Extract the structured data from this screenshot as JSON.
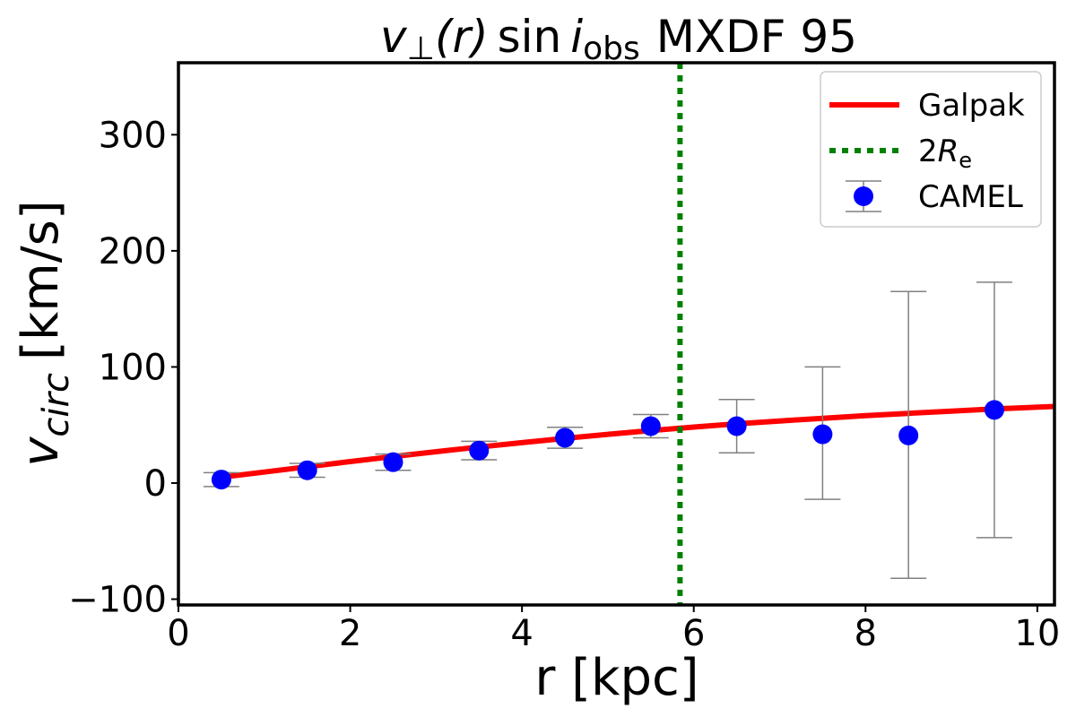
{
  "chart_data": {
    "type": "scatter",
    "title": {
      "v": "v",
      "perp": "⊥",
      "r_expr": "(r)",
      "sin": "sin",
      "i": "i",
      "obs": "obs",
      "name": "MXDF 95"
    },
    "xlabel": "r [kpc]",
    "ylabel": {
      "v": "v",
      "sub": "circ",
      "unit": "[km/s]"
    },
    "xlim": [
      0,
      10.2
    ],
    "ylim": [
      -105,
      362
    ],
    "xticks": [
      0,
      2,
      4,
      6,
      8,
      10
    ],
    "yticks": [
      -100,
      0,
      100,
      200,
      300
    ],
    "xtick_labels": [
      "0",
      "2",
      "4",
      "6",
      "8",
      "10"
    ],
    "ytick_labels": [
      "−100",
      "0",
      "100",
      "200",
      "300"
    ],
    "grid": false,
    "legend_position": "top-right",
    "series": [
      {
        "name": "Galpak",
        "kind": "line",
        "color": "#ff0000",
        "x": [
          0.5,
          1,
          1.5,
          2,
          2.5,
          3,
          3.5,
          4,
          4.5,
          5,
          5.5,
          6,
          6.5,
          7,
          7.5,
          8,
          8.5,
          9,
          9.5,
          10.2
        ],
        "y": [
          5,
          9.5,
          14,
          18.5,
          22.8,
          27,
          31,
          34.8,
          38.5,
          42,
          45.2,
          48.2,
          51,
          53.5,
          55.8,
          58,
          60,
          62,
          63.8,
          66
        ]
      },
      {
        "name": "2R_e",
        "kind": "vline",
        "color": "#008000",
        "x": 5.84
      },
      {
        "name": "CAMEL",
        "kind": "errorbar",
        "color": "#0000ff",
        "ecolor": "#808080",
        "x": [
          0.5,
          1.5,
          2.5,
          3.5,
          4.5,
          5.5,
          6.5,
          7.5,
          8.5,
          9.5
        ],
        "y": [
          3,
          11,
          18,
          28,
          39,
          49,
          49,
          42,
          41,
          63
        ],
        "yerr_low": [
          6,
          6,
          7,
          8,
          9,
          10,
          23,
          56,
          123,
          110
        ],
        "yerr_high": [
          6,
          6,
          7,
          8,
          9,
          10,
          23,
          58,
          124,
          110
        ]
      }
    ],
    "legend": {
      "galpak": "Galpak",
      "re_prefix": "2",
      "re_main": "R",
      "re_sub": "e",
      "camel": "CAMEL"
    }
  }
}
